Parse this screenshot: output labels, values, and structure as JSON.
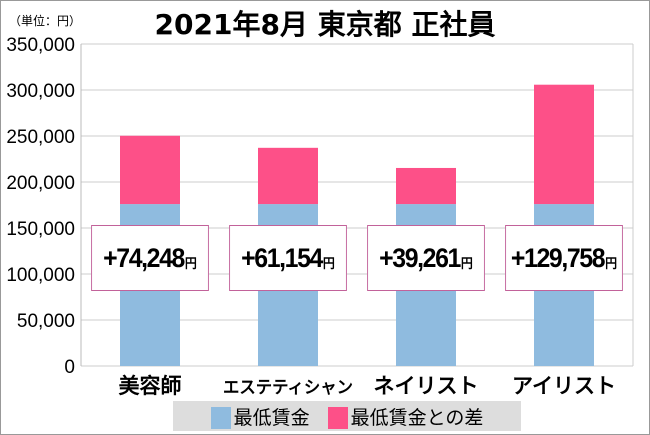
{
  "chart_data": {
    "type": "bar",
    "stacked": true,
    "title": "2021年8月 東京都 正社員",
    "unit_label": "（単位：円）",
    "categories": [
      "美容師",
      "エステティシャン",
      "ネイリスト",
      "アイリスト"
    ],
    "series": [
      {
        "name": "最低賃金",
        "values": [
          176000,
          176000,
          176000,
          176000
        ],
        "color": "#8fbbdf"
      },
      {
        "name": "最低賃金との差",
        "values": [
          74248,
          61154,
          39261,
          129758
        ],
        "color": "#fd5088"
      }
    ],
    "data_labels": [
      "+74,248",
      "+61,154",
      "+39,261",
      "+129,758"
    ],
    "data_label_unit": "円",
    "ylim": [
      0,
      350000
    ],
    "yticks": [
      "0",
      "50,000",
      "100,000",
      "150,000",
      "200,000",
      "250,000",
      "300,000",
      "350,000"
    ],
    "grid": true,
    "legend": "bottom"
  }
}
